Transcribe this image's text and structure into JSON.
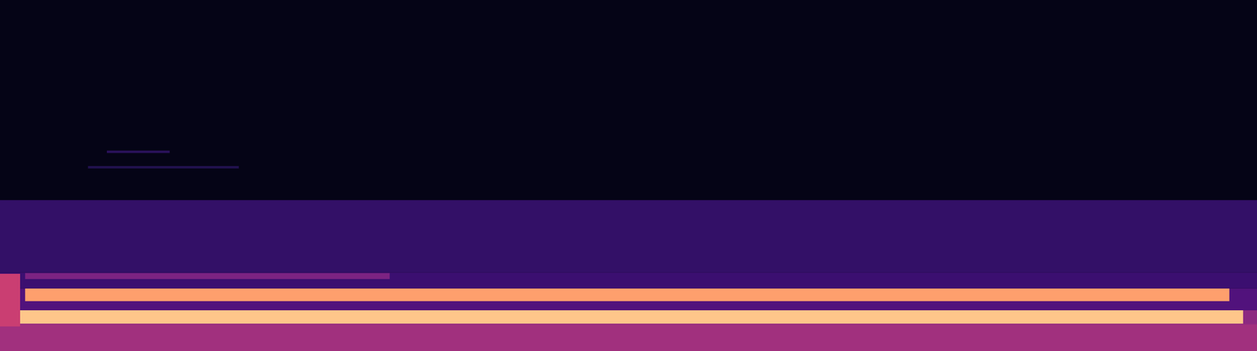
{
  "chart_data": {
    "type": "spectrogram",
    "tick_labels": false,
    "color": "magma",
    "xlim": [
      0,
      100
    ],
    "ylim": [
      0,
      100
    ],
    "color_range": [
      0,
      100
    ],
    "cells": [
      {
        "x1": 0,
        "x2": 100,
        "y1": 43,
        "y2": 100,
        "value": 4
      },
      {
        "x1": 0,
        "x2": 100,
        "y1": 22.4,
        "y2": 43,
        "value": 18
      },
      {
        "x1": 0,
        "x2": 100,
        "y1": 17.8,
        "y2": 22.4,
        "value": 20
      },
      {
        "x1": 0,
        "x2": 100,
        "y1": 11.6,
        "y2": 17.8,
        "value": 25
      },
      {
        "x1": 0,
        "x2": 100,
        "y1": 0,
        "y2": 11.6,
        "value": 42
      },
      {
        "x1": 0,
        "x2": 100,
        "y1": 0,
        "y2": 7.5,
        "value": 45
      },
      {
        "x1": 1.6,
        "x2": 98.9,
        "y1": 7.8,
        "y2": 11.6,
        "value": 88
      },
      {
        "x1": 98.9,
        "x2": 100,
        "y1": 7.8,
        "y2": 11.6,
        "value": 40
      },
      {
        "x1": 2,
        "x2": 97.8,
        "y1": 14.2,
        "y2": 17.8,
        "value": 80
      },
      {
        "x1": 2,
        "x2": 31,
        "y1": 20.5,
        "y2": 22.2,
        "value": 36
      },
      {
        "x1": 0,
        "x2": 1.6,
        "y1": 7,
        "y2": 22,
        "value": 55
      },
      {
        "x1": 8.5,
        "x2": 13.5,
        "y1": 56.4,
        "y2": 57.1,
        "value": 16
      },
      {
        "x1": 7,
        "x2": 19,
        "y1": 52,
        "y2": 52.7,
        "value": 14
      }
    ]
  }
}
